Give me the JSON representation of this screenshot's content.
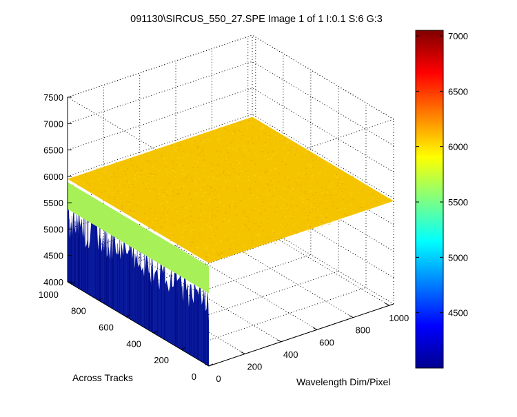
{
  "chart_data": {
    "type": "surface",
    "title": "091130\\SIRCUS_550_27.SPE  Image 1 of 1  I:0.1  S:6  G:3",
    "xlabel": "Wavelength Dim/Pixel",
    "ylabel": "Across Tracks",
    "zlabel": "",
    "x_ticks": [
      0,
      200,
      400,
      600,
      800,
      1000
    ],
    "y_ticks": [
      0,
      200,
      400,
      600,
      800,
      1000
    ],
    "z_ticks": [
      4000,
      4500,
      5000,
      5500,
      6000,
      6500,
      7000,
      7500
    ],
    "xlim": [
      0,
      1024
    ],
    "ylim": [
      0,
      1024
    ],
    "zlim": [
      4000,
      7500
    ],
    "grid": true,
    "colormap": "jet",
    "colorbar": {
      "ticks": [
        4500,
        5000,
        5500,
        6000,
        6500,
        7000
      ],
      "range": [
        4000,
        7050
      ]
    },
    "surface": {
      "plateau_level": 5950,
      "plateau_noise": 60,
      "edge_row_y": 0,
      "edge_transition_level": 5500,
      "edge_floor_level": 4000,
      "edge_floor_noise": 350
    }
  },
  "colors": {
    "plateau": "#f5c400",
    "plateau_light": "#ffd21e",
    "transition": "#a8f058",
    "floor": "#0a1a9c",
    "floor_dark": "#000a80"
  }
}
